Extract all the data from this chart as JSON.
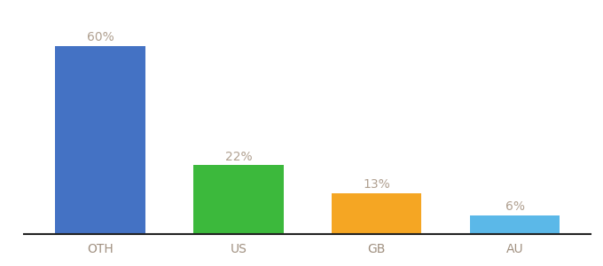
{
  "categories": [
    "OTH",
    "US",
    "GB",
    "AU"
  ],
  "values": [
    60,
    22,
    13,
    6
  ],
  "labels": [
    "60%",
    "22%",
    "13%",
    "6%"
  ],
  "bar_colors": [
    "#4472C4",
    "#3CB93C",
    "#F5A623",
    "#5BB8E8"
  ],
  "background_color": "#ffffff",
  "ylim": [
    0,
    68
  ],
  "label_color": "#b0a090",
  "label_fontsize": 10,
  "tick_fontsize": 10,
  "tick_color": "#a09080",
  "bar_width": 0.65
}
